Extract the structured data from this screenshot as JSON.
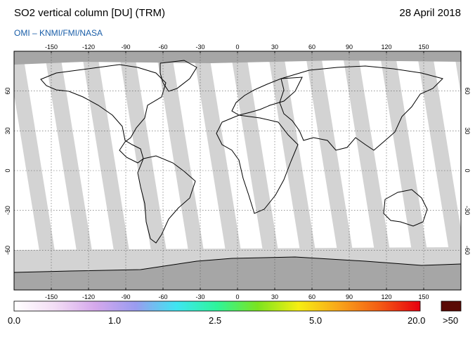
{
  "header": {
    "title": "SO2 vertical column [DU] (TRM)",
    "date": "28 April 2018",
    "credit": "OMI  –  KNMI/FMI/NASA"
  },
  "map": {
    "lon_ticks": [
      "-150",
      "-120",
      "-90",
      "-60",
      "-30",
      "0",
      "30",
      "60",
      "90",
      "120",
      "150"
    ],
    "lat_ticks_left": [
      "60",
      "30",
      "0",
      "-30",
      "-60"
    ],
    "lat_ticks_right": [
      "60",
      "30",
      "0",
      "-30",
      "-60"
    ],
    "colors": {
      "no_data": "#a6a6a6",
      "swath_gap": "#d3d3d3",
      "land_outline": "#000000",
      "graticule": "#555555"
    }
  },
  "colorbar": {
    "labels": [
      "0.0",
      "1.0",
      "2.5",
      "5.0",
      "20.0",
      ">50"
    ],
    "gradient": [
      "#ffffff",
      "#f3ddf5",
      "#d5a8ec",
      "#9a9cf0",
      "#3fe6f2",
      "#2ef59a",
      "#7be41f",
      "#f6ee12",
      "#f9a51a",
      "#f35c14",
      "#e8000f"
    ],
    "overflow_color": "#5a0a05"
  }
}
